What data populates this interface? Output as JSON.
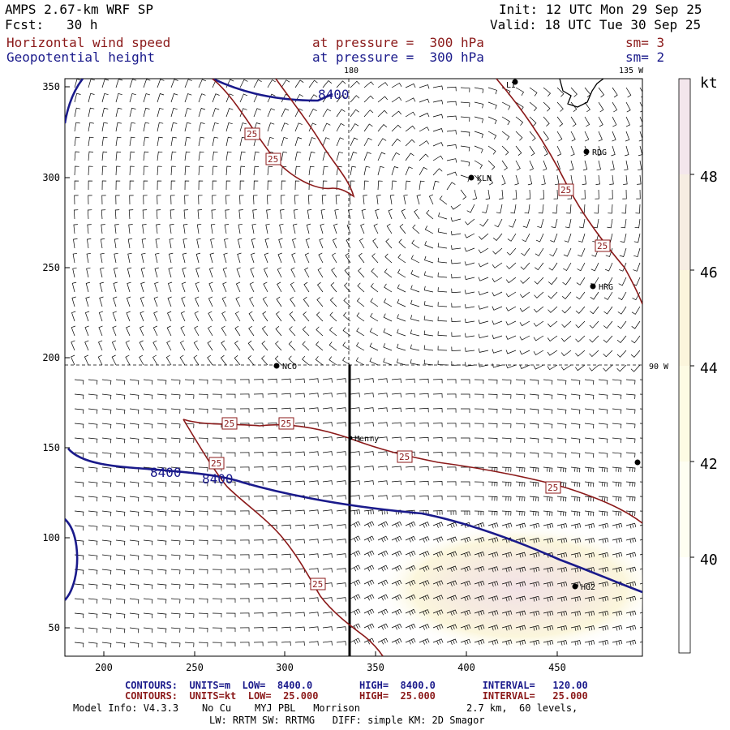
{
  "header": {
    "model": "AMPS 2.67-km WRF SP",
    "init": "Init: 12 UTC Mon 29 Sep 25",
    "fcst_label": "Fcst:",
    "fcst_value": "30 h",
    "valid": "Valid: 18 UTC Tue 30 Sep 25"
  },
  "fields": [
    {
      "name": "Horizontal wind speed",
      "level": "at pressure =  300 hPa",
      "smooth": "sm= 3",
      "color": "#8b1a1a"
    },
    {
      "name": "Geopotential height",
      "level": "at pressure =  300 hPa",
      "smooth": "sm= 2",
      "color": "#1a1a8b"
    }
  ],
  "map": {
    "lon_labels": [
      "180",
      "135 W",
      "90 W"
    ],
    "x_ticks": [
      "200",
      "250",
      "300",
      "350",
      "400",
      "450"
    ],
    "y_ticks": [
      "350",
      "300",
      "250",
      "200",
      "150",
      "100",
      "50"
    ],
    "stations": [
      "KLN",
      "RDG",
      "HRG",
      "NCO",
      "Henry",
      "HG2",
      "LI"
    ],
    "contour_labels_height": [
      "8400",
      "8400",
      "8400"
    ],
    "contour_labels_speed": [
      "25",
      "25",
      "25",
      "25",
      "25",
      "25",
      "25",
      "25",
      "25",
      "25"
    ]
  },
  "colorbar": {
    "unit": "kt",
    "ticks": [
      "48",
      "46",
      "44",
      "42",
      "40"
    ],
    "colors": [
      "#f3e6ec",
      "#f6ede2",
      "#fbf5dc",
      "#fdfbe4",
      "#fefef2",
      "#ffffff"
    ]
  },
  "footer": {
    "line1": "CONTOURS:  UNITS=m  LOW=  8400.0        HIGH=  8400.0        INTERVAL=   120.00",
    "line2": "CONTOURS:  UNITS=kt  LOW=  25.000       HIGH=  25.000        INTERVAL=   25.000",
    "model_info": "Model Info: V4.3.3    No Cu    MYJ PBL   Morrison",
    "grid": "2.7 km,  60 levels,",
    "physics": "LW: RRTM SW: RRTMG   DIFF: simple KM: 2D Smagor"
  }
}
